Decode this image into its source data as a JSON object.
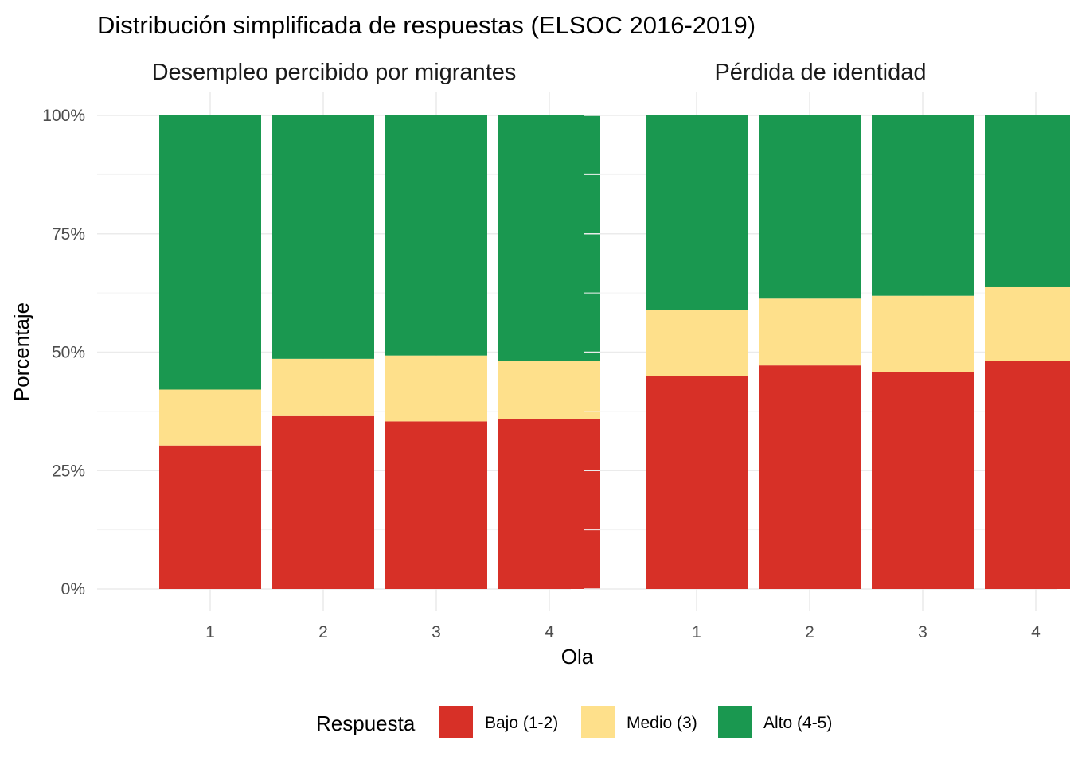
{
  "chart_data": {
    "type": "bar",
    "stacked": "percent",
    "title": "Distribución simplificada de respuestas (ELSOC 2016-2019)",
    "xlabel": "Ola",
    "ylabel": "Porcentaje",
    "ylim": [
      0,
      1
    ],
    "yticks": [
      {
        "value": 0,
        "label": "0%"
      },
      {
        "value": 0.25,
        "label": "25%"
      },
      {
        "value": 0.5,
        "label": "50%"
      },
      {
        "value": 0.75,
        "label": "75%"
      },
      {
        "value": 1,
        "label": "100%"
      }
    ],
    "categories": [
      "1",
      "2",
      "3",
      "4"
    ],
    "grid": true,
    "legend": {
      "title": "Respuesta",
      "position": "bottom",
      "items": [
        {
          "name": "Bajo (1-2)",
          "color": "#d73027"
        },
        {
          "name": "Medio (3)",
          "color": "#fee08b"
        },
        {
          "name": "Alto (4-5)",
          "color": "#1a9850"
        }
      ]
    },
    "panels": [
      {
        "title": "Desempleo percibido por migrantes",
        "series": [
          {
            "name": "Bajo (1-2)",
            "values": [
              0.303,
              0.365,
              0.354,
              0.358
            ]
          },
          {
            "name": "Medio (3)",
            "values": [
              0.118,
              0.121,
              0.139,
              0.123
            ]
          },
          {
            "name": "Alto (4-5)",
            "values": [
              0.579,
              0.514,
              0.507,
              0.519
            ]
          }
        ]
      },
      {
        "title": "Pérdida de identidad",
        "series": [
          {
            "name": "Bajo (1-2)",
            "values": [
              0.449,
              0.472,
              0.458,
              0.482
            ]
          },
          {
            "name": "Medio (3)",
            "values": [
              0.14,
              0.141,
              0.161,
              0.155
            ]
          },
          {
            "name": "Alto (4-5)",
            "values": [
              0.411,
              0.387,
              0.381,
              0.363
            ]
          }
        ]
      }
    ]
  }
}
